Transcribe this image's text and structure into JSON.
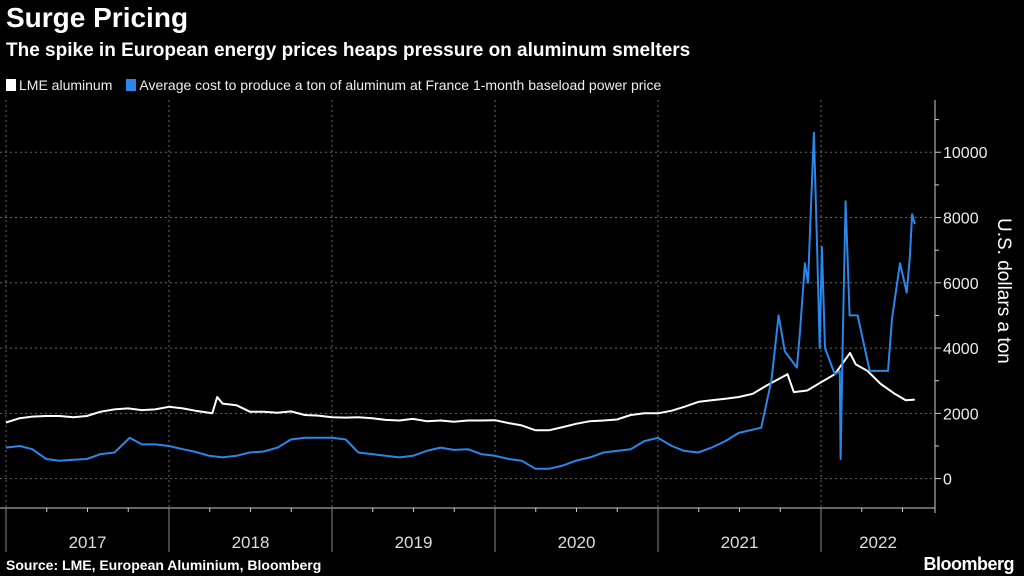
{
  "chart_data": {
    "type": "line",
    "title": "Surge Pricing",
    "subtitle": "The spike in European energy prices heaps pressure on aluminum smelters",
    "ylabel": "U.S. dollars a ton",
    "ylim": [
      -900,
      11600
    ],
    "yticks": [
      0,
      2000,
      4000,
      6000,
      8000,
      10000
    ],
    "y_axis_side": "right",
    "xlim": [
      "2017-01-01",
      "2022-09-15"
    ],
    "xtick_labels": [
      "2017",
      "2018",
      "2019",
      "2020",
      "2021",
      "2022"
    ],
    "grid": true,
    "legend_position": "top-left",
    "source": "Source: LME, European Aluminium, Bloomberg",
    "brand": "Bloomberg",
    "series": [
      {
        "name": "LME aluminum",
        "color": "#ffffff",
        "points": [
          [
            "2017-01-01",
            1720
          ],
          [
            "2017-02-01",
            1850
          ],
          [
            "2017-03-01",
            1900
          ],
          [
            "2017-04-01",
            1920
          ],
          [
            "2017-05-01",
            1920
          ],
          [
            "2017-06-01",
            1880
          ],
          [
            "2017-07-01",
            1920
          ],
          [
            "2017-08-01",
            2050
          ],
          [
            "2017-09-01",
            2120
          ],
          [
            "2017-10-01",
            2150
          ],
          [
            "2017-11-01",
            2100
          ],
          [
            "2017-12-01",
            2120
          ],
          [
            "2018-01-01",
            2200
          ],
          [
            "2018-02-01",
            2150
          ],
          [
            "2018-03-01",
            2080
          ],
          [
            "2018-04-08",
            2000
          ],
          [
            "2018-04-19",
            2500
          ],
          [
            "2018-05-01",
            2300
          ],
          [
            "2018-06-01",
            2250
          ],
          [
            "2018-07-01",
            2050
          ],
          [
            "2018-08-01",
            2050
          ],
          [
            "2018-09-01",
            2020
          ],
          [
            "2018-10-01",
            2060
          ],
          [
            "2018-11-01",
            1950
          ],
          [
            "2018-12-01",
            1930
          ],
          [
            "2019-01-01",
            1880
          ],
          [
            "2019-02-01",
            1870
          ],
          [
            "2019-03-01",
            1880
          ],
          [
            "2019-04-01",
            1850
          ],
          [
            "2019-05-01",
            1800
          ],
          [
            "2019-06-01",
            1780
          ],
          [
            "2019-07-01",
            1830
          ],
          [
            "2019-08-01",
            1760
          ],
          [
            "2019-09-01",
            1780
          ],
          [
            "2019-10-01",
            1740
          ],
          [
            "2019-11-01",
            1780
          ],
          [
            "2019-12-01",
            1780
          ],
          [
            "2020-01-01",
            1790
          ],
          [
            "2020-02-01",
            1700
          ],
          [
            "2020-03-01",
            1630
          ],
          [
            "2020-04-01",
            1480
          ],
          [
            "2020-05-01",
            1480
          ],
          [
            "2020-06-01",
            1580
          ],
          [
            "2020-07-01",
            1680
          ],
          [
            "2020-08-01",
            1760
          ],
          [
            "2020-09-01",
            1780
          ],
          [
            "2020-10-01",
            1810
          ],
          [
            "2020-11-01",
            1950
          ],
          [
            "2020-12-01",
            2000
          ],
          [
            "2021-01-01",
            2000
          ],
          [
            "2021-02-01",
            2080
          ],
          [
            "2021-03-01",
            2200
          ],
          [
            "2021-04-01",
            2350
          ],
          [
            "2021-05-01",
            2400
          ],
          [
            "2021-06-01",
            2450
          ],
          [
            "2021-07-01",
            2500
          ],
          [
            "2021-08-01",
            2600
          ],
          [
            "2021-09-01",
            2850
          ],
          [
            "2021-10-18",
            3200
          ],
          [
            "2021-11-01",
            2650
          ],
          [
            "2021-12-01",
            2700
          ],
          [
            "2022-01-01",
            2950
          ],
          [
            "2022-02-01",
            3200
          ],
          [
            "2022-03-07",
            3850
          ],
          [
            "2022-03-20",
            3500
          ],
          [
            "2022-04-15",
            3300
          ],
          [
            "2022-05-15",
            2900
          ],
          [
            "2022-06-15",
            2600
          ],
          [
            "2022-07-10",
            2400
          ],
          [
            "2022-07-30",
            2420
          ]
        ]
      },
      {
        "name": "Average cost to produce a ton of aluminum at France 1-month baseload power price",
        "color": "#2a86e8",
        "points": [
          [
            "2017-01-01",
            950
          ],
          [
            "2017-02-01",
            1000
          ],
          [
            "2017-03-01",
            900
          ],
          [
            "2017-04-01",
            600
          ],
          [
            "2017-05-01",
            550
          ],
          [
            "2017-06-01",
            580
          ],
          [
            "2017-07-01",
            600
          ],
          [
            "2017-08-01",
            750
          ],
          [
            "2017-09-01",
            800
          ],
          [
            "2017-10-05",
            1250
          ],
          [
            "2017-11-01",
            1050
          ],
          [
            "2017-12-01",
            1050
          ],
          [
            "2018-01-01",
            1000
          ],
          [
            "2018-02-01",
            900
          ],
          [
            "2018-03-01",
            820
          ],
          [
            "2018-04-01",
            700
          ],
          [
            "2018-05-01",
            650
          ],
          [
            "2018-06-01",
            700
          ],
          [
            "2018-07-01",
            800
          ],
          [
            "2018-08-01",
            830
          ],
          [
            "2018-09-01",
            950
          ],
          [
            "2018-10-01",
            1200
          ],
          [
            "2018-11-01",
            1250
          ],
          [
            "2018-12-01",
            1250
          ],
          [
            "2019-01-01",
            1250
          ],
          [
            "2019-02-01",
            1200
          ],
          [
            "2019-03-01",
            800
          ],
          [
            "2019-04-01",
            750
          ],
          [
            "2019-05-01",
            700
          ],
          [
            "2019-06-01",
            650
          ],
          [
            "2019-07-01",
            700
          ],
          [
            "2019-08-01",
            850
          ],
          [
            "2019-09-01",
            950
          ],
          [
            "2019-10-01",
            880
          ],
          [
            "2019-11-01",
            900
          ],
          [
            "2019-12-01",
            750
          ],
          [
            "2020-01-01",
            700
          ],
          [
            "2020-02-01",
            600
          ],
          [
            "2020-03-01",
            550
          ],
          [
            "2020-04-01",
            300
          ],
          [
            "2020-05-01",
            300
          ],
          [
            "2020-06-01",
            400
          ],
          [
            "2020-07-01",
            550
          ],
          [
            "2020-08-01",
            650
          ],
          [
            "2020-09-01",
            800
          ],
          [
            "2020-10-01",
            850
          ],
          [
            "2020-11-01",
            900
          ],
          [
            "2020-12-01",
            1150
          ],
          [
            "2021-01-01",
            1250
          ],
          [
            "2021-02-01",
            1000
          ],
          [
            "2021-03-01",
            850
          ],
          [
            "2021-04-01",
            800
          ],
          [
            "2021-05-01",
            950
          ],
          [
            "2021-06-01",
            1150
          ],
          [
            "2021-07-01",
            1400
          ],
          [
            "2021-08-20",
            1560
          ],
          [
            "2021-09-12",
            3000
          ],
          [
            "2021-09-28",
            5000
          ],
          [
            "2021-10-12",
            3900
          ],
          [
            "2021-11-08",
            3400
          ],
          [
            "2021-11-15",
            4500
          ],
          [
            "2021-11-26",
            6600
          ],
          [
            "2021-12-03",
            6000
          ],
          [
            "2021-12-16",
            10600
          ],
          [
            "2021-12-23",
            7200
          ],
          [
            "2021-12-29",
            4000
          ],
          [
            "2022-01-03",
            7100
          ],
          [
            "2022-01-10",
            4000
          ],
          [
            "2022-02-01",
            3200
          ],
          [
            "2022-02-12",
            3300
          ],
          [
            "2022-02-14",
            600
          ],
          [
            "2022-02-19",
            4500
          ],
          [
            "2022-02-25",
            8500
          ],
          [
            "2022-03-06",
            5000
          ],
          [
            "2022-03-24",
            5000
          ],
          [
            "2022-04-20",
            3300
          ],
          [
            "2022-05-31",
            3300
          ],
          [
            "2022-06-09",
            4900
          ],
          [
            "2022-06-27",
            6600
          ],
          [
            "2022-07-12",
            5700
          ],
          [
            "2022-07-19",
            6800
          ],
          [
            "2022-07-24",
            8100
          ],
          [
            "2022-07-30",
            7800
          ]
        ]
      }
    ]
  }
}
